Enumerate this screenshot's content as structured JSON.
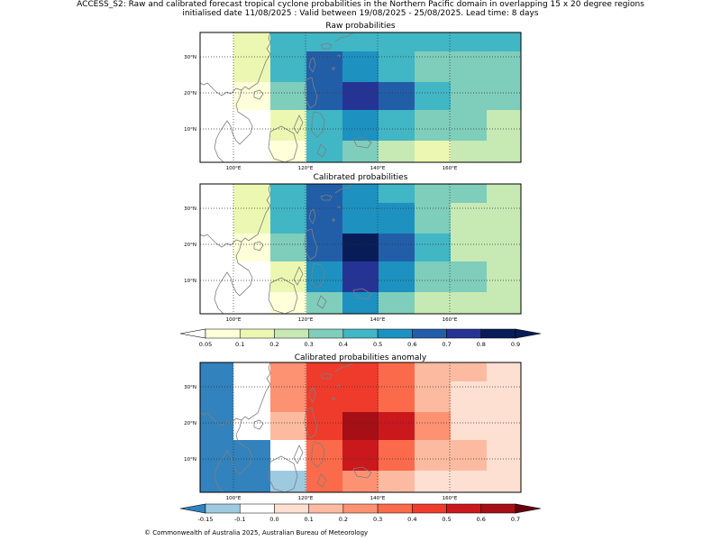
{
  "header": {
    "title_line1": "ACCESS_S2: Raw and calibrated forecast tropical cyclone probabilities in the Northern Pacific domain in overlapping 15 x 20 degree regions",
    "title_line2": "initialised date 11/08/2025 :  Valid between 19/08/2025 - 25/08/2025. Lead time: 8 days"
  },
  "panels": [
    {
      "title": "Raw probabilities",
      "rows": [
        [
          "#ffffff",
          "#ecf8b2",
          "#41b6c4",
          "#41b6c4",
          "#41b6c4",
          "#41b6c4",
          "#41b6c4",
          "#41b6c4",
          "#41b6c4"
        ],
        [
          "#ffffff",
          "#ecf8b2",
          "#41b6c4",
          "#225ea8",
          "#1d91c0",
          "#41b6c4",
          "#7fcdbb",
          "#7fcdbb",
          "#7fcdbb"
        ],
        [
          "#ffffff",
          "#ffffd9",
          "#7fcdbb",
          "#225ea8",
          "#253494",
          "#225ea8",
          "#41b6c4",
          "#7fcdbb",
          "#7fcdbb"
        ],
        [
          "#ffffff",
          "#ffffff",
          "#ecf8b2",
          "#41b6c4",
          "#1d91c0",
          "#41b6c4",
          "#7fcdbb",
          "#7fcdbb",
          "#c7e9b4"
        ],
        [
          "#ffffff",
          "#ffffff",
          "#ffffd9",
          "#41b6c4",
          "#7fcdbb",
          "#c7e9b4",
          "#ecf8b2",
          "#c7e9b4",
          "#c7e9b4"
        ]
      ]
    },
    {
      "title": "Calibrated probabilities",
      "rows": [
        [
          "#ffffff",
          "#ecf8b2",
          "#41b6c4",
          "#225ea8",
          "#1d91c0",
          "#41b6c4",
          "#7fcdbb",
          "#7fcdbb",
          "#c7e9b4"
        ],
        [
          "#ffffff",
          "#ecf8b2",
          "#41b6c4",
          "#225ea8",
          "#1d91c0",
          "#1d91c0",
          "#7fcdbb",
          "#c7e9b4",
          "#c7e9b4"
        ],
        [
          "#ffffff",
          "#ffffd9",
          "#7fcdbb",
          "#225ea8",
          "#081d58",
          "#225ea8",
          "#41b6c4",
          "#c7e9b4",
          "#c7e9b4"
        ],
        [
          "#ffffff",
          "#ffffff",
          "#ecf8b2",
          "#1d91c0",
          "#253494",
          "#1d91c0",
          "#7fcdbb",
          "#7fcdbb",
          "#c7e9b4"
        ],
        [
          "#ffffff",
          "#ffffff",
          "#ffffd9",
          "#7fcdbb",
          "#1d91c0",
          "#7fcdbb",
          "#c7e9b4",
          "#c7e9b4",
          "#c7e9b4"
        ]
      ]
    },
    {
      "title": "Calibrated probabilities anomaly",
      "rows": [
        [
          "#3182bd",
          "#ffffff",
          "#fc9272",
          "#ef3b2c",
          "#ef3b2c",
          "#fb6a4a",
          "#fcbba1",
          "#fcbba1",
          "#fee0d2"
        ],
        [
          "#3182bd",
          "#ffffff",
          "#fc9272",
          "#ef3b2c",
          "#ef3b2c",
          "#fb6a4a",
          "#fcbba1",
          "#fee0d2",
          "#fee0d2"
        ],
        [
          "#3182bd",
          "#ffffff",
          "#fcbba1",
          "#ef3b2c",
          "#a50f15",
          "#cb181d",
          "#fc9272",
          "#fee0d2",
          "#fee0d2"
        ],
        [
          "#3182bd",
          "#3182bd",
          "#ffffff",
          "#fb6a4a",
          "#cb181d",
          "#fb6a4a",
          "#fcbba1",
          "#fcbba1",
          "#fee0d2"
        ],
        [
          "#3182bd",
          "#3182bd",
          "#9ecae1",
          "#fb6a4a",
          "#fc9272",
          "#fcbba1",
          "#fee0d2",
          "#fee0d2",
          "#fee0d2"
        ]
      ]
    }
  ],
  "axes": {
    "lon_ticks": [
      "100°E",
      "120°E",
      "140°E",
      "160°E"
    ],
    "lat_ticks": [
      "30°N",
      "20°N",
      "10°N"
    ]
  },
  "colorbars": {
    "probability": {
      "labels": [
        "0.05",
        "0.1",
        "0.2",
        "0.3",
        "0.4",
        "0.5",
        "0.6",
        "0.7",
        "0.8",
        "0.9"
      ],
      "colors": [
        "#ffffd9",
        "#ecf8b2",
        "#c7e9b4",
        "#7fcdbb",
        "#41b6c4",
        "#1d91c0",
        "#225ea8",
        "#253494",
        "#081d58"
      ],
      "under_color": "#ffffff",
      "over_color": "#081d58"
    },
    "anomaly": {
      "labels": [
        "-0.15",
        "-0.1",
        "0.0",
        "0.1",
        "0.2",
        "0.3",
        "0.4",
        "0.5",
        "0.6",
        "0.7"
      ],
      "colors": [
        "#9ecae1",
        "#ffffff",
        "#fee0d2",
        "#fcbba1",
        "#fc9272",
        "#fb6a4a",
        "#ef3b2c",
        "#cb181d",
        "#a50f15"
      ],
      "under_color": "#3182bd",
      "over_color": "#67000d"
    }
  },
  "footer": "© Commonwealth of Australia 2025, Australian Bureau of Meteorology"
}
